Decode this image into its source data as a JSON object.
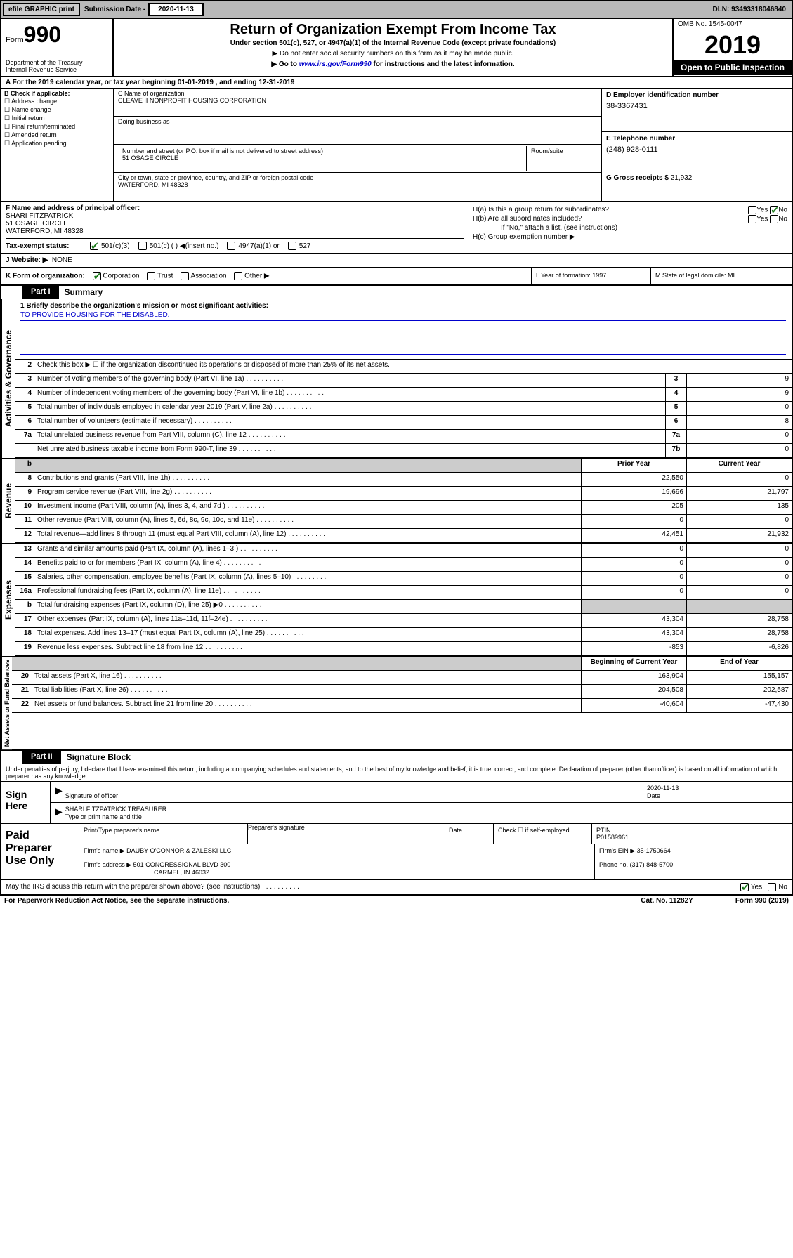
{
  "topbar": {
    "efile": "efile GRAPHIC print",
    "subm_label": "Submission Date -",
    "subm_date": "2020-11-13",
    "dln": "DLN: 93493318046840"
  },
  "header": {
    "form_label": "Form",
    "form_num": "990",
    "dept": "Department of the Treasury\nInternal Revenue Service",
    "title": "Return of Organization Exempt From Income Tax",
    "sub1": "Under section 501(c), 527, or 4947(a)(1) of the Internal Revenue Code (except private foundations)",
    "sub2": "▶ Do not enter social security numbers on this form as it may be made public.",
    "sub3_pre": "▶ Go to ",
    "sub3_link": "www.irs.gov/Form990",
    "sub3_post": " for instructions and the latest information.",
    "omb": "OMB No. 1545-0047",
    "year": "2019",
    "open": "Open to Public Inspection"
  },
  "row_a": "A For the 2019 calendar year, or tax year beginning 01-01-2019     , and ending 12-31-2019",
  "col_b": {
    "label": "B Check if applicable:",
    "items": [
      "Address change",
      "Name change",
      "Initial return",
      "Final return/terminated",
      "Amended return",
      "Application pending"
    ]
  },
  "col_c": {
    "name_label": "C Name of organization",
    "name": "CLEAVE II NONPROFIT HOUSING CORPORATION",
    "dba_label": "Doing business as",
    "addr_label": "Number and street (or P.O. box if mail is not delivered to street address)",
    "addr": "51 OSAGE CIRCLE",
    "room_label": "Room/suite",
    "city_label": "City or town, state or province, country, and ZIP or foreign postal code",
    "city": "WATERFORD, MI  48328"
  },
  "col_d": {
    "label": "D Employer identification number",
    "val": "38-3367431"
  },
  "col_e": {
    "label": "E Telephone number",
    "val": "(248) 928-0111"
  },
  "col_g": {
    "label": "G Gross receipts $ ",
    "val": "21,932"
  },
  "col_f": {
    "label": "F  Name and address of principal officer:",
    "name": "SHARI FITZPATRICK",
    "addr1": "51 OSAGE CIRCLE",
    "addr2": "WATERFORD, MI  48328"
  },
  "col_h": {
    "ha": "H(a)  Is this a group return for subordinates?",
    "hb": "H(b)  Are all subordinates included?",
    "hb_note": "If \"No,\" attach a list. (see instructions)",
    "hc": "H(c)  Group exemption number ▶"
  },
  "row_i": {
    "label": "Tax-exempt status:",
    "opts": [
      "501(c)(3)",
      "501(c) (   ) ◀(insert no.)",
      "4947(a)(1) or",
      "527"
    ]
  },
  "row_j": {
    "label": "J   Website: ▶",
    "val": "NONE"
  },
  "row_k": {
    "label": "K Form of organization:",
    "opts": [
      "Corporation",
      "Trust",
      "Association",
      "Other ▶"
    ]
  },
  "row_l": "L Year of formation: 1997",
  "row_m": "M State of legal domicile: MI",
  "part1": {
    "hdr": "Part I",
    "title": "Summary",
    "q1": "1  Briefly describe the organization's mission or most significant activities:",
    "mission": "TO PROVIDE HOUSING FOR THE DISABLED.",
    "q2": "Check this box ▶ ☐  if the organization discontinued its operations or disposed of more than 25% of its net assets.",
    "rows_single": [
      {
        "n": "3",
        "d": "Number of voting members of the governing body (Part VI, line 1a)",
        "b": "3",
        "v": "9"
      },
      {
        "n": "4",
        "d": "Number of independent voting members of the governing body (Part VI, line 1b)",
        "b": "4",
        "v": "9"
      },
      {
        "n": "5",
        "d": "Total number of individuals employed in calendar year 2019 (Part V, line 2a)",
        "b": "5",
        "v": "0"
      },
      {
        "n": "6",
        "d": "Total number of volunteers (estimate if necessary)",
        "b": "6",
        "v": "8"
      },
      {
        "n": "7a",
        "d": "Total unrelated business revenue from Part VIII, column (C), line 12",
        "b": "7a",
        "v": "0"
      },
      {
        "n": "",
        "d": "Net unrelated business taxable income from Form 990-T, line 39",
        "b": "7b",
        "v": "0"
      }
    ],
    "col_hdrs": {
      "prior": "Prior Year",
      "current": "Current Year"
    },
    "revenue": [
      {
        "n": "8",
        "d": "Contributions and grants (Part VIII, line 1h)",
        "p": "22,550",
        "c": "0"
      },
      {
        "n": "9",
        "d": "Program service revenue (Part VIII, line 2g)",
        "p": "19,696",
        "c": "21,797"
      },
      {
        "n": "10",
        "d": "Investment income (Part VIII, column (A), lines 3, 4, and 7d )",
        "p": "205",
        "c": "135"
      },
      {
        "n": "11",
        "d": "Other revenue (Part VIII, column (A), lines 5, 6d, 8c, 9c, 10c, and 11e)",
        "p": "0",
        "c": "0"
      },
      {
        "n": "12",
        "d": "Total revenue—add lines 8 through 11 (must equal Part VIII, column (A), line 12)",
        "p": "42,451",
        "c": "21,932"
      }
    ],
    "expenses": [
      {
        "n": "13",
        "d": "Grants and similar amounts paid (Part IX, column (A), lines 1–3 )",
        "p": "0",
        "c": "0"
      },
      {
        "n": "14",
        "d": "Benefits paid to or for members (Part IX, column (A), line 4)",
        "p": "0",
        "c": "0"
      },
      {
        "n": "15",
        "d": "Salaries, other compensation, employee benefits (Part IX, column (A), lines 5–10)",
        "p": "0",
        "c": "0"
      },
      {
        "n": "16a",
        "d": "Professional fundraising fees (Part IX, column (A), line 11e)",
        "p": "0",
        "c": "0"
      },
      {
        "n": "b",
        "d": "Total fundraising expenses (Part IX, column (D), line 25) ▶0",
        "p": "",
        "c": "",
        "grey": true
      },
      {
        "n": "17",
        "d": "Other expenses (Part IX, column (A), lines 11a–11d, 11f–24e)",
        "p": "43,304",
        "c": "28,758"
      },
      {
        "n": "18",
        "d": "Total expenses. Add lines 13–17 (must equal Part IX, column (A), line 25)",
        "p": "43,304",
        "c": "28,758"
      },
      {
        "n": "19",
        "d": "Revenue less expenses. Subtract line 18 from line 12",
        "p": "-853",
        "c": "-6,826"
      }
    ],
    "balance_hdrs": {
      "beg": "Beginning of Current Year",
      "end": "End of Year"
    },
    "balances": [
      {
        "n": "20",
        "d": "Total assets (Part X, line 16)",
        "p": "163,904",
        "c": "155,157"
      },
      {
        "n": "21",
        "d": "Total liabilities (Part X, line 26)",
        "p": "204,508",
        "c": "202,587"
      },
      {
        "n": "22",
        "d": "Net assets or fund balances. Subtract line 21 from line 20",
        "p": "-40,604",
        "c": "-47,430"
      }
    ]
  },
  "vtabs": {
    "gov": "Activities & Governance",
    "rev": "Revenue",
    "exp": "Expenses",
    "net": "Net Assets or Fund Balances"
  },
  "part2": {
    "hdr": "Part II",
    "title": "Signature Block",
    "decl": "Under penalties of perjury, I declare that I have examined this return, including accompanying schedules and statements, and to the best of my knowledge and belief, it is true, correct, and complete. Declaration of preparer (other than officer) is based on all information of which preparer has any knowledge.",
    "sign_here": "Sign Here",
    "sig_officer": "Signature of officer",
    "sig_date": "2020-11-13",
    "date_label": "Date",
    "name_title": "SHARI FITZPATRICK  TREASURER",
    "name_title_label": "Type or print name and title",
    "paid": "Paid Preparer Use Only",
    "prep_name_label": "Print/Type preparer's name",
    "prep_sig_label": "Preparer's signature",
    "prep_date_label": "Date",
    "check_self": "Check ☐ if self-employed",
    "ptin_label": "PTIN",
    "ptin": "P01589961",
    "firm_name_label": "Firm's name       ▶",
    "firm_name": "DAUBY O'CONNOR & ZALESKI LLC",
    "firm_ein_label": "Firm's EIN ▶",
    "firm_ein": "35-1750664",
    "firm_addr_label": "Firm's address ▶",
    "firm_addr1": "501 CONGRESSIONAL BLVD 300",
    "firm_addr2": "CARMEL, IN  46032",
    "phone_label": "Phone no.",
    "phone": "(317) 848-5700",
    "discuss": "May the IRS discuss this return with the preparer shown above? (see instructions)"
  },
  "footer": {
    "paperwork": "For Paperwork Reduction Act Notice, see the separate instructions.",
    "cat": "Cat. No. 11282Y",
    "form": "Form 990 (2019)"
  },
  "yn": {
    "yes": "Yes",
    "no": "No"
  }
}
